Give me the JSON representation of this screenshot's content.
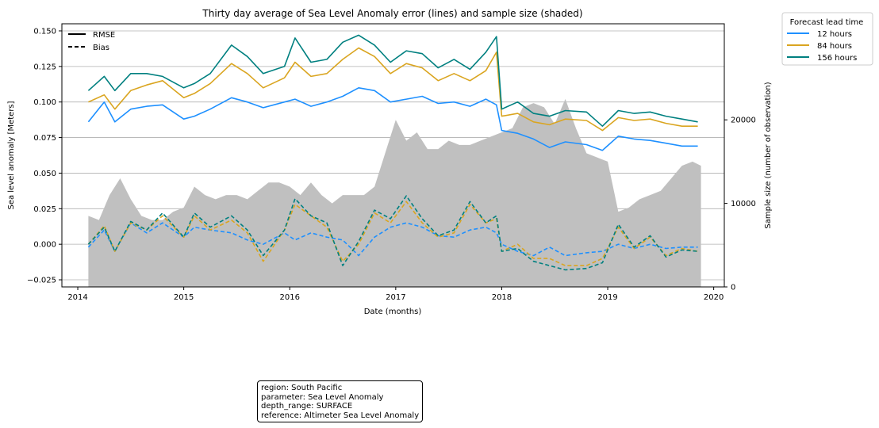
{
  "chart_data": {
    "type": "line",
    "title": "Thirty day average of Sea Level Anomaly error (lines) and sample size (shaded)",
    "xlabel": "Date (months)",
    "ylabel": "Sea level anomaly [Meters]",
    "y2label": "Sample size (number of observation)",
    "xlim": [
      2013.85,
      2020.1
    ],
    "ylim": [
      -0.03,
      0.155
    ],
    "y2lim": [
      0,
      31500
    ],
    "x_ticks": [
      2014,
      2015,
      2016,
      2017,
      2018,
      2019,
      2020
    ],
    "x_tick_labels": [
      "2014",
      "2015",
      "2016",
      "2017",
      "2018",
      "2019",
      "2020"
    ],
    "y_ticks": [
      -0.025,
      0.0,
      0.025,
      0.05,
      0.075,
      0.1,
      0.125,
      0.15
    ],
    "y_tick_labels": [
      "−0.025",
      "0.000",
      "0.025",
      "0.050",
      "0.075",
      "0.100",
      "0.125",
      "0.150"
    ],
    "y2_ticks": [
      0,
      10000,
      20000
    ],
    "y2_tick_labels": [
      "0",
      "10000",
      "20000"
    ],
    "grid": "horizontal",
    "style_legend": {
      "items": [
        {
          "label": "RMSE",
          "dash": "solid"
        },
        {
          "label": "Bias",
          "dash": "dashed"
        }
      ],
      "placement": "upper-left"
    },
    "legend": {
      "title": "Forecast lead time",
      "placement": "outside-right",
      "items": [
        "12 hours",
        "84 hours",
        "156 hours"
      ]
    },
    "colors": {
      "12 hours": "#1e90ff",
      "84 hours": "#daa520",
      "156 hours": "#008080",
      "sample_fill": "#c0c0c0"
    },
    "x": [
      2014.1,
      2014.25,
      2014.35,
      2014.5,
      2014.65,
      2014.8,
      2015.0,
      2015.1,
      2015.25,
      2015.45,
      2015.6,
      2015.75,
      2015.95,
      2016.05,
      2016.2,
      2016.35,
      2016.5,
      2016.65,
      2016.8,
      2016.95,
      2017.1,
      2017.25,
      2017.4,
      2017.55,
      2017.7,
      2017.85,
      2017.95,
      2018.0,
      2018.15,
      2018.3,
      2018.45,
      2018.6,
      2018.8,
      2018.95,
      2019.1,
      2019.25,
      2019.4,
      2019.55,
      2019.7,
      2019.85
    ],
    "series": [
      {
        "name": "12 hours",
        "metric": "RMSE",
        "values": [
          0.086,
          0.1,
          0.086,
          0.095,
          0.097,
          0.098,
          0.088,
          0.09,
          0.095,
          0.103,
          0.1,
          0.096,
          0.1,
          0.102,
          0.097,
          0.1,
          0.104,
          0.11,
          0.108,
          0.1,
          0.102,
          0.104,
          0.099,
          0.1,
          0.097,
          0.102,
          0.098,
          0.08,
          0.078,
          0.074,
          0.068,
          0.072,
          0.07,
          0.066,
          0.076,
          0.074,
          0.073,
          0.071,
          0.069,
          0.069
        ]
      },
      {
        "name": "84 hours",
        "metric": "RMSE",
        "values": [
          0.1,
          0.105,
          0.095,
          0.108,
          0.112,
          0.115,
          0.103,
          0.106,
          0.113,
          0.127,
          0.12,
          0.11,
          0.117,
          0.128,
          0.118,
          0.12,
          0.13,
          0.138,
          0.132,
          0.12,
          0.127,
          0.124,
          0.115,
          0.12,
          0.115,
          0.122,
          0.135,
          0.09,
          0.092,
          0.086,
          0.084,
          0.088,
          0.087,
          0.08,
          0.089,
          0.087,
          0.088,
          0.085,
          0.083,
          0.083
        ]
      },
      {
        "name": "156 hours",
        "metric": "RMSE",
        "values": [
          0.108,
          0.118,
          0.108,
          0.12,
          0.12,
          0.118,
          0.11,
          0.113,
          0.12,
          0.14,
          0.132,
          0.12,
          0.125,
          0.145,
          0.128,
          0.13,
          0.142,
          0.147,
          0.14,
          0.128,
          0.136,
          0.134,
          0.124,
          0.13,
          0.123,
          0.135,
          0.146,
          0.095,
          0.1,
          0.092,
          0.09,
          0.094,
          0.093,
          0.083,
          0.094,
          0.092,
          0.093,
          0.09,
          0.088,
          0.086
        ]
      },
      {
        "name": "12 hours",
        "metric": "Bias",
        "values": [
          -0.002,
          0.01,
          -0.005,
          0.015,
          0.008,
          0.015,
          0.005,
          0.012,
          0.01,
          0.008,
          0.003,
          0.0,
          0.008,
          0.003,
          0.008,
          0.005,
          0.003,
          -0.008,
          0.005,
          0.012,
          0.015,
          0.012,
          0.006,
          0.005,
          0.01,
          0.012,
          0.008,
          0.0,
          -0.005,
          -0.008,
          -0.002,
          -0.008,
          -0.006,
          -0.005,
          0.0,
          -0.003,
          0.0,
          -0.003,
          -0.002,
          -0.002
        ]
      },
      {
        "name": "84 hours",
        "metric": "Bias",
        "values": [
          0.0,
          0.013,
          -0.005,
          0.015,
          0.01,
          0.02,
          0.005,
          0.02,
          0.01,
          0.017,
          0.008,
          -0.012,
          0.01,
          0.028,
          0.02,
          0.012,
          -0.012,
          0.0,
          0.022,
          0.015,
          0.03,
          0.015,
          0.005,
          0.008,
          0.028,
          0.015,
          0.018,
          -0.005,
          0.0,
          -0.01,
          -0.01,
          -0.015,
          -0.015,
          -0.01,
          0.012,
          -0.003,
          0.005,
          -0.008,
          -0.003,
          -0.005
        ]
      },
      {
        "name": "156 hours",
        "metric": "Bias",
        "values": [
          0.0,
          0.012,
          -0.005,
          0.016,
          0.01,
          0.022,
          0.005,
          0.022,
          0.012,
          0.02,
          0.01,
          -0.008,
          0.01,
          0.032,
          0.02,
          0.015,
          -0.015,
          0.002,
          0.024,
          0.018,
          0.034,
          0.018,
          0.006,
          0.01,
          0.03,
          0.015,
          0.02,
          -0.005,
          -0.003,
          -0.012,
          -0.015,
          -0.018,
          -0.017,
          -0.013,
          0.014,
          -0.002,
          0.006,
          -0.009,
          -0.004,
          -0.005
        ]
      }
    ],
    "sample_size": {
      "x": [
        2014.1,
        2014.2,
        2014.3,
        2014.4,
        2014.5,
        2014.6,
        2014.7,
        2014.8,
        2014.9,
        2015.0,
        2015.1,
        2015.2,
        2015.3,
        2015.4,
        2015.5,
        2015.6,
        2015.7,
        2015.8,
        2015.9,
        2016.0,
        2016.1,
        2016.2,
        2016.3,
        2016.4,
        2016.5,
        2016.6,
        2016.7,
        2016.8,
        2016.9,
        2017.0,
        2017.1,
        2017.2,
        2017.3,
        2017.4,
        2017.5,
        2017.6,
        2017.7,
        2017.8,
        2017.9,
        2018.0,
        2018.1,
        2018.2,
        2018.3,
        2018.4,
        2018.5,
        2018.6,
        2018.7,
        2018.8,
        2018.9,
        2019.0,
        2019.1,
        2019.2,
        2019.3,
        2019.4,
        2019.5,
        2019.6,
        2019.7,
        2019.8,
        2019.88
      ],
      "values": [
        8500,
        8000,
        11000,
        13000,
        10500,
        8500,
        8000,
        8000,
        9000,
        9500,
        12000,
        11000,
        10500,
        11000,
        11000,
        10500,
        11500,
        12500,
        12500,
        12000,
        11000,
        12500,
        11000,
        10000,
        11000,
        11000,
        11000,
        12000,
        16000,
        20000,
        17500,
        18500,
        16500,
        16500,
        17500,
        17000,
        17000,
        17500,
        18000,
        18500,
        19000,
        21500,
        22000,
        21500,
        19500,
        22500,
        19000,
        16000,
        15500,
        15000,
        9000,
        9500,
        10500,
        11000,
        11500,
        13000,
        14500,
        15000,
        14500
      ]
    },
    "annotation_lines": [
      "region: South Pacific",
      "parameter: Sea Level Anomaly",
      "depth_range: SURFACE",
      "reference: Altimeter Sea Level Anomaly"
    ]
  }
}
